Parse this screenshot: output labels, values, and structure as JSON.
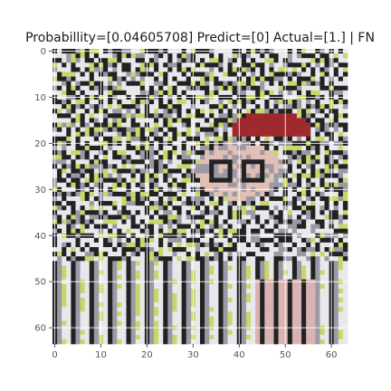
{
  "figure": {
    "title": "Probabillity=[0.04605708] Predict=[0] Actual=[1.] | FN"
  },
  "chart_data": {
    "type": "heatmap",
    "title": "Probabillity=[0.04605708] Predict=[0] Actual=[1.] | FN",
    "xlabel": "",
    "ylabel": "",
    "image_size": [
      64,
      64
    ],
    "xlim": [
      -0.5,
      63.5
    ],
    "ylim": [
      63.5,
      -0.5
    ],
    "x_ticks": [
      0,
      10,
      20,
      30,
      40,
      50,
      60
    ],
    "y_ticks": [
      0,
      10,
      20,
      30,
      40,
      50,
      60
    ],
    "grid": true,
    "content": "64x64 RGB crop of a busy cartoon scene (yellow-green background, dark outlined white leaf-like shapes, a face with glasses and red hat, striped lower area)",
    "colors": {
      "background_green": "#c9d66a",
      "outline_dark": "#222222",
      "white_shapes": "#e8e8ec",
      "grey_shapes": "#9a9aa6",
      "hat_red": "#9e2a2e",
      "skin": "#e0c0b4",
      "pink_stripe": "#d9b3b3"
    }
  }
}
